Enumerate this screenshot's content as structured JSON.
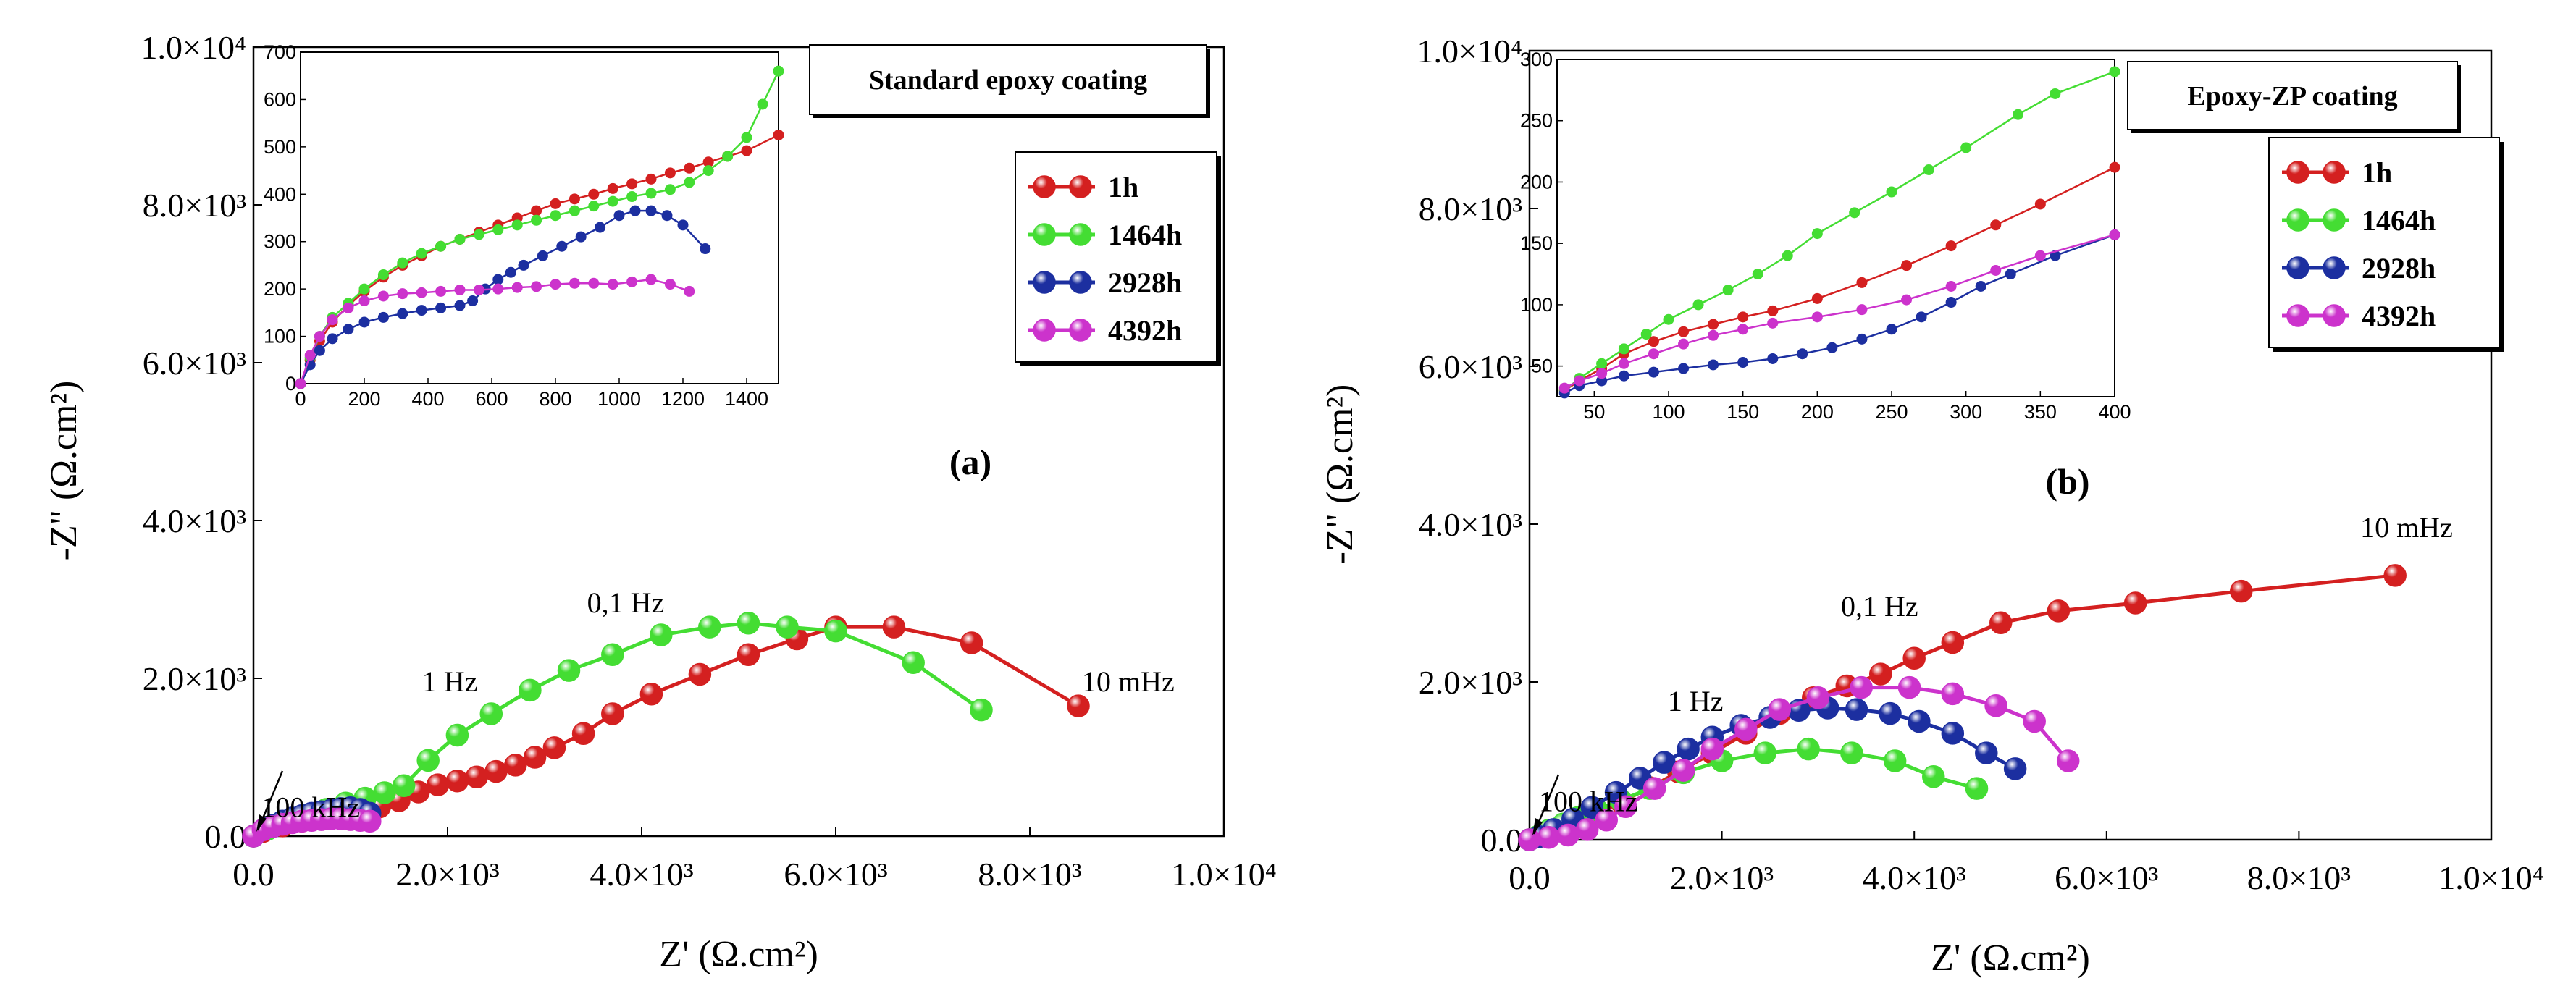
{
  "figure_labels": {
    "a": "(a)",
    "b": "(b)"
  },
  "chart_data": [
    {
      "id": "a",
      "type": "scatter",
      "title": "Standard epoxy coating",
      "xlabel": "Z' (Ω.cm²)",
      "ylabel": "-Z\" (Ω.cm²)",
      "xlim": [
        0,
        10000
      ],
      "ylim": [
        0,
        10000
      ],
      "xticks": [
        0,
        2000,
        4000,
        6000,
        8000,
        10000
      ],
      "xtick_labels": [
        "0.0",
        "2.0×10³",
        "4.0×10³",
        "6.0×10³",
        "8.0×10³",
        "1.0×10⁴"
      ],
      "yticks": [
        0,
        2000,
        4000,
        6000,
        8000,
        10000
      ],
      "ytick_labels": [
        "0.0",
        "2.0×10³",
        "4.0×10³",
        "6.0×10³",
        "8.0×10³",
        "1.0×10⁴"
      ],
      "annotations": [
        {
          "text": "100 kHz",
          "x": 40,
          "y": 60
        },
        {
          "text": "1 Hz",
          "x": 1700,
          "y": 1650
        },
        {
          "text": "0,1 Hz",
          "x": 3400,
          "y": 2650
        },
        {
          "text": "10 mHz",
          "x": 8500,
          "y": 1650
        }
      ],
      "legend": [
        "1h",
        "1464h",
        "2928h",
        "4392h"
      ],
      "series": [
        {
          "name": "1h",
          "color": "#d42020",
          "x": [
            0,
            100,
            300,
            500,
            700,
            900,
            1100,
            1300,
            1500,
            1700,
            1900,
            2100,
            2300,
            2500,
            2700,
            2900,
            3100,
            3400,
            3700,
            4100,
            4600,
            5100,
            5600,
            6000,
            6600,
            7400,
            8500
          ],
          "y": [
            0,
            60,
            130,
            190,
            240,
            290,
            320,
            370,
            450,
            560,
            650,
            700,
            750,
            820,
            900,
            1000,
            1120,
            1300,
            1550,
            1800,
            2050,
            2300,
            2500,
            2650,
            2650,
            2450,
            1650
          ]
        },
        {
          "name": "1464h",
          "color": "#44dd33",
          "x": [
            0,
            150,
            350,
            550,
            750,
            950,
            1150,
            1350,
            1550,
            1800,
            2100,
            2450,
            2850,
            3250,
            3700,
            4200,
            4700,
            5100,
            5500,
            6000,
            6800,
            7500
          ],
          "y": [
            0,
            90,
            180,
            270,
            340,
            420,
            480,
            550,
            640,
            960,
            1280,
            1550,
            1850,
            2100,
            2300,
            2550,
            2650,
            2700,
            2650,
            2600,
            2200,
            1600
          ]
        },
        {
          "name": "2928h",
          "color": "#1c2fa0",
          "x": [
            0,
            100,
            200,
            300,
            400,
            500,
            600,
            700,
            800,
            900,
            1000,
            1100,
            1200
          ],
          "y": [
            0,
            80,
            140,
            190,
            230,
            260,
            290,
            310,
            330,
            350,
            360,
            340,
            290
          ]
        },
        {
          "name": "4392h",
          "color": "#cc33cc",
          "x": [
            0,
            100,
            200,
            300,
            400,
            500,
            600,
            700,
            800,
            900,
            1000,
            1100,
            1200
          ],
          "y": [
            0,
            80,
            120,
            150,
            170,
            190,
            200,
            210,
            220,
            220,
            210,
            200,
            190
          ]
        }
      ],
      "inset": {
        "xlim": [
          0,
          1500
        ],
        "ylim": [
          0,
          700
        ],
        "xticks": [
          0,
          200,
          400,
          600,
          800,
          1000,
          1200,
          1400
        ],
        "yticks": [
          0,
          100,
          200,
          300,
          400,
          500,
          600,
          700
        ],
        "series": [
          {
            "name": "1h",
            "x": [
              0,
              30,
              60,
              100,
              150,
              200,
              260,
              320,
              380,
              440,
              500,
              560,
              620,
              680,
              740,
              800,
              860,
              920,
              980,
              1040,
              1100,
              1160,
              1220,
              1280,
              1340,
              1400,
              1500
            ],
            "y": [
              0,
              50,
              90,
              130,
              165,
              195,
              225,
              250,
              270,
              290,
              305,
              320,
              335,
              350,
              365,
              380,
              390,
              400,
              412,
              422,
              432,
              445,
              455,
              468,
              480,
              492,
              525
            ]
          },
          {
            "name": "1464h",
            "x": [
              0,
              30,
              60,
              100,
              150,
              200,
              260,
              320,
              380,
              440,
              500,
              560,
              620,
              680,
              740,
              800,
              860,
              920,
              980,
              1040,
              1100,
              1160,
              1220,
              1280,
              1340,
              1400,
              1450,
              1500
            ],
            "y": [
              0,
              55,
              100,
              140,
              170,
              200,
              230,
              255,
              275,
              290,
              305,
              315,
              325,
              335,
              345,
              355,
              365,
              375,
              385,
              395,
              402,
              410,
              425,
              450,
              480,
              520,
              590,
              660
            ]
          },
          {
            "name": "2928h",
            "x": [
              0,
              30,
              60,
              100,
              150,
              200,
              260,
              320,
              380,
              440,
              500,
              540,
              580,
              620,
              660,
              700,
              760,
              820,
              880,
              940,
              1000,
              1050,
              1100,
              1150,
              1200,
              1270
            ],
            "y": [
              0,
              40,
              70,
              95,
              115,
              130,
              140,
              148,
              155,
              160,
              165,
              175,
              200,
              220,
              235,
              250,
              270,
              290,
              310,
              330,
              355,
              365,
              365,
              355,
              335,
              285
            ]
          },
          {
            "name": "4392h",
            "x": [
              0,
              30,
              60,
              100,
              150,
              200,
              260,
              320,
              380,
              440,
              500,
              560,
              620,
              680,
              740,
              800,
              860,
              920,
              980,
              1040,
              1100,
              1160,
              1220
            ],
            "y": [
              0,
              60,
              100,
              135,
              160,
              175,
              185,
              190,
              192,
              195,
              198,
              198,
              200,
              203,
              205,
              210,
              212,
              212,
              210,
              215,
              220,
              210,
              195
            ]
          }
        ]
      }
    },
    {
      "id": "b",
      "type": "scatter",
      "title": "Epoxy-ZP coating",
      "xlabel": "Z' (Ω.cm²)",
      "ylabel": "-Z\" (Ω.cm²)",
      "xlim": [
        0,
        10000
      ],
      "ylim": [
        0,
        10000
      ],
      "xticks": [
        0,
        2000,
        4000,
        6000,
        8000,
        10000
      ],
      "xtick_labels": [
        "0.0",
        "2.0×10³",
        "4.0×10³",
        "6.0×10³",
        "8.0×10³",
        "1.0×10⁴"
      ],
      "yticks": [
        0,
        2000,
        4000,
        6000,
        8000,
        10000
      ],
      "ytick_labels": [
        "0.0",
        "2.0×10³",
        "4.0×10³",
        "6.0×10³",
        "8.0×10³",
        "1.0×10⁴"
      ],
      "annotations": [
        {
          "text": "100 kHz",
          "x": 60,
          "y": 180
        },
        {
          "text": "1 Hz",
          "x": 1400,
          "y": 1450
        },
        {
          "text": "0,1 Hz",
          "x": 3200,
          "y": 2650
        },
        {
          "text": "10 mHz",
          "x": 8600,
          "y": 3650
        }
      ],
      "legend": [
        "1h",
        "1464h",
        "2928h",
        "4392h"
      ],
      "series": [
        {
          "name": "1h",
          "color": "#d42020",
          "x": [
            0,
            100,
            250,
            450,
            700,
            950,
            1250,
            1550,
            1900,
            2250,
            2600,
            2950,
            3300,
            3650,
            4000,
            4400,
            4900,
            5500,
            6300,
            7400,
            9000
          ],
          "y": [
            0,
            40,
            100,
            200,
            330,
            480,
            660,
            860,
            1100,
            1350,
            1600,
            1800,
            1950,
            2100,
            2300,
            2500,
            2750,
            2900,
            3000,
            3150,
            3350
          ]
        },
        {
          "name": "1464h",
          "color": "#44dd33",
          "x": [
            0,
            100,
            200,
            350,
            500,
            700,
            950,
            1250,
            1600,
            2000,
            2450,
            2900,
            3350,
            3800,
            4200,
            4650
          ],
          "y": [
            0,
            50,
            120,
            200,
            280,
            380,
            500,
            650,
            850,
            1000,
            1100,
            1150,
            1100,
            1000,
            800,
            650
          ]
        },
        {
          "name": "2928h",
          "color": "#1c2fa0",
          "x": [
            0,
            100,
            250,
            450,
            650,
            900,
            1150,
            1400,
            1650,
            1900,
            2200,
            2500,
            2800,
            3100,
            3400,
            3750,
            4050,
            4400,
            4750,
            5050
          ],
          "y": [
            0,
            40,
            130,
            260,
            410,
            600,
            780,
            980,
            1150,
            1300,
            1450,
            1550,
            1640,
            1670,
            1650,
            1600,
            1500,
            1350,
            1100,
            900
          ]
        },
        {
          "name": "4392h",
          "color": "#cc33cc",
          "x": [
            0,
            200,
            400,
            600,
            800,
            1000,
            1300,
            1600,
            1900,
            2250,
            2600,
            3000,
            3450,
            3950,
            4400,
            4850,
            5250,
            5600
          ],
          "y": [
            0,
            30,
            60,
            130,
            250,
            420,
            650,
            880,
            1150,
            1400,
            1650,
            1800,
            1930,
            1930,
            1850,
            1700,
            1500,
            1000
          ]
        }
      ],
      "inset": {
        "xlim": [
          25,
          400
        ],
        "ylim": [
          25,
          300
        ],
        "xticks": [
          50,
          100,
          150,
          200,
          250,
          300,
          350,
          400
        ],
        "yticks": [
          50,
          100,
          150,
          200,
          250,
          300
        ],
        "series": [
          {
            "name": "1h",
            "x": [
              30,
              40,
              55,
              70,
              90,
              110,
              130,
              150,
              170,
              200,
              230,
              260,
              290,
              320,
              350,
              400
            ],
            "y": [
              30,
              38,
              48,
              60,
              70,
              78,
              84,
              90,
              95,
              105,
              118,
              132,
              148,
              165,
              182,
              212
            ]
          },
          {
            "name": "1464h",
            "x": [
              30,
              40,
              55,
              70,
              85,
              100,
              120,
              140,
              160,
              180,
              200,
              225,
              250,
              275,
              300,
              335,
              360,
              400
            ],
            "y": [
              30,
              40,
              52,
              64,
              76,
              88,
              100,
              112,
              125,
              140,
              158,
              175,
              192,
              210,
              228,
              255,
              272,
              290
            ]
          },
          {
            "name": "2928h",
            "x": [
              30,
              40,
              55,
              70,
              90,
              110,
              130,
              150,
              170,
              190,
              210,
              230,
              250,
              270,
              290,
              310,
              330,
              360,
              400
            ],
            "y": [
              28,
              34,
              38,
              42,
              45,
              48,
              51,
              53,
              56,
              60,
              65,
              72,
              80,
              90,
              102,
              115,
              125,
              140,
              157
            ]
          },
          {
            "name": "4392h",
            "x": [
              30,
              40,
              55,
              70,
              90,
              110,
              130,
              150,
              170,
              200,
              230,
              260,
              290,
              320,
              350,
              400
            ],
            "y": [
              32,
              38,
              44,
              52,
              60,
              68,
              75,
              80,
              85,
              90,
              96,
              104,
              115,
              128,
              140,
              157
            ]
          }
        ]
      }
    }
  ]
}
